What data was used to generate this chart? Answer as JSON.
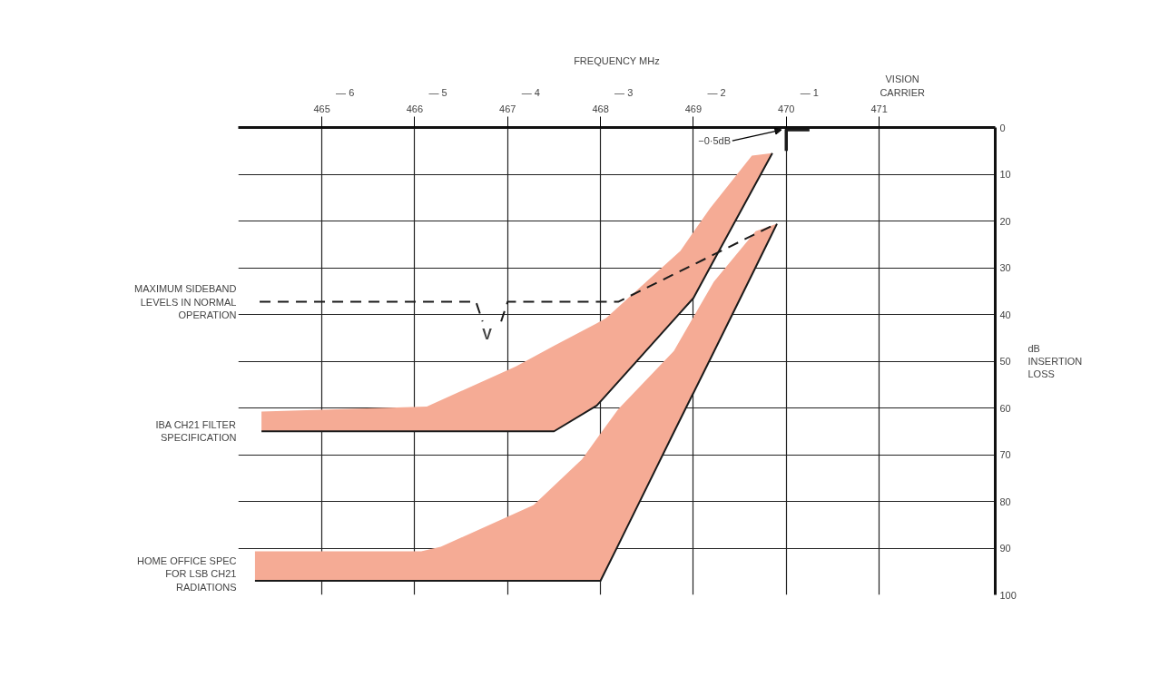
{
  "chart_data": {
    "type": "line",
    "xlabel": "FREQUENCY MHz",
    "ylabel": "dB INSERTION LOSS",
    "xlim": [
      464.1,
      472.25
    ],
    "xticks": [
      465,
      466,
      467,
      468,
      469,
      470,
      471
    ],
    "x2lim": [
      -7.15,
      1.0
    ],
    "x2ticks": [
      {
        "value": -6,
        "label": "— 6"
      },
      {
        "value": -5,
        "label": "— 5"
      },
      {
        "value": -4,
        "label": "— 4"
      },
      {
        "value": -3,
        "label": "— 3"
      },
      {
        "value": -2,
        "label": "— 2"
      },
      {
        "value": -1,
        "label": "— 1"
      },
      {
        "value": 0,
        "label": "VISION CARRIER"
      }
    ],
    "ylim": [
      100,
      0
    ],
    "yticks": [
      0,
      10,
      20,
      30,
      40,
      50,
      60,
      70,
      80,
      90,
      100
    ],
    "grid": true,
    "legend": false,
    "marker": "none",
    "series": [
      {
        "name": "MAXIMUM SIDEBAND LEVELS IN NORMAL OPERATION",
        "color": "#1a1a1a",
        "line_style": "dashed",
        "x": [
          464.33,
          466.66,
          466.73,
          466.83,
          466.93,
          467.0,
          468.19,
          469.89
        ],
        "values": [
          37.3,
          37.3,
          41.5,
          null,
          41.5,
          37.3,
          37.3,
          20.6
        ]
      },
      {
        "name": "IBA CH21 FILTER SPECIFICATION",
        "color": "#1a1a1a",
        "x": [
          464.35,
          466.13,
          467.09,
          467.5,
          467.96,
          468.06,
          468.86,
          469.0,
          469.18,
          469.63,
          469.85
        ],
        "values": [
          65,
          65,
          65,
          65,
          59.5,
          57.3,
          39.6,
          36.5,
          29.9,
          13.5,
          5.5
        ],
        "lower": [
          60.8,
          59.7,
          51.1,
          46.7,
          41.9,
          40.8,
          26.4,
          22.4,
          17.3,
          6,
          5.5
        ],
        "upper": [
          65,
          65,
          65,
          65,
          59.5,
          57.3,
          39.6,
          36.5,
          29.9,
          13.5,
          5.5
        ]
      },
      {
        "name": "HOME OFFICE SPEC FOR LSB CH21 RADIATIONS",
        "color": "#1a1a1a",
        "x": [
          464.28,
          466.07,
          466.28,
          467.28,
          467.8,
          468.0,
          468.19,
          468.79,
          469.22,
          469.67,
          469.9
        ],
        "values": [
          97,
          97,
          97,
          97,
          97,
          97,
          89.4,
          65.2,
          48.0,
          29.9,
          20.6
        ],
        "lower": [
          90.7,
          90.7,
          89.7,
          80.8,
          71,
          65.5,
          60.3,
          47.8,
          33,
          22.2,
          20.6
        ],
        "upper": [
          97,
          97,
          97,
          97,
          97,
          97,
          89.4,
          65.2,
          48.0,
          29.9,
          20.6
        ]
      },
      {
        "color": "#1a1a1a",
        "x": [
          470.0,
          470.0,
          470.25
        ],
        "values": [
          5,
          0.5,
          0.5
        ]
      }
    ],
    "annotations": [
      {
        "text": "−0·5dB",
        "x": 470.0,
        "y": 0.5
      },
      {
        "text": "V",
        "x": 466.73,
        "y": 41.5
      }
    ]
  }
}
